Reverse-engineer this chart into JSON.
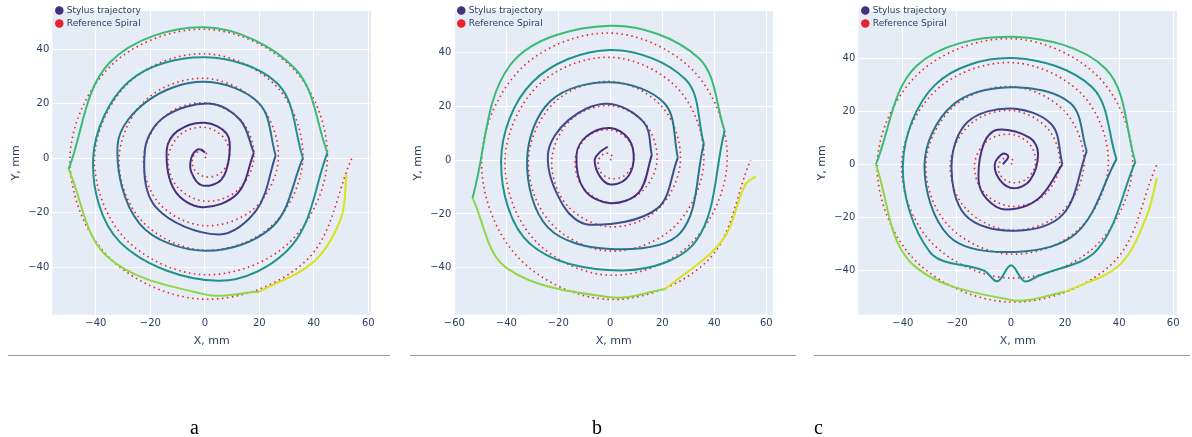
{
  "chart_data": [
    {
      "type": "line",
      "xlabel": "X, mm",
      "ylabel": "Y, mm",
      "xlim": [
        -56,
        61
      ],
      "ylim": [
        -57.5,
        54
      ],
      "xticks": [
        -40,
        -20,
        0,
        20,
        40,
        60
      ],
      "yticks": [
        -40,
        -20,
        0,
        20,
        40
      ],
      "grid": true,
      "legend": "top left",
      "annotations": [
        "a"
      ],
      "series": [
        {
          "name": "Stylus trajectory",
          "type": "line",
          "color": "#46307e",
          "x": [
            0,
            -1,
            -3,
            -5,
            -5,
            -1,
            6,
            9,
            8,
            0,
            -10,
            -14,
            -11,
            -1,
            12,
            18
          ],
          "values": [
            2,
            3,
            3,
            0,
            -5,
            -10,
            -8,
            1,
            9,
            13,
            10,
            3,
            -12,
            -18,
            -13,
            2
          ]
        },
        {
          "type": "line",
          "color": "#3c4f8a",
          "x": [
            18,
            13,
            2,
            -15,
            -22,
            -18,
            5,
            19,
            26
          ],
          "values": [
            2,
            14,
            20,
            15,
            3,
            -18,
            -28,
            -19,
            1
          ]
        },
        {
          "type": "line",
          "color": "#2c728e",
          "x": [
            26,
            20,
            0,
            -21,
            -32,
            -24,
            0,
            25,
            36
          ],
          "values": [
            1,
            20,
            28,
            21,
            5,
            -24,
            -34,
            -25,
            0
          ]
        },
        {
          "type": "line",
          "color": "#21918c",
          "x": [
            36,
            27,
            0,
            -28,
            -41,
            -31,
            5,
            32,
            45
          ],
          "values": [
            0,
            27,
            37,
            28,
            0,
            -31,
            -45,
            -32,
            2
          ]
        },
        {
          "type": "line",
          "color": "#3bbb75",
          "x": [
            45,
            33,
            0,
            -35,
            -50
          ],
          "values": [
            2,
            33,
            48,
            35,
            -4
          ]
        },
        {
          "type": "line",
          "color": "#8fd744",
          "x": [
            -50,
            -36,
            0,
            20
          ],
          "values": [
            -4,
            -36,
            -50,
            -49
          ]
        },
        {
          "type": "line",
          "color": "#d8e219",
          "x": [
            20,
            40,
            50,
            52
          ],
          "values": [
            -49,
            -38,
            -22,
            -6
          ]
        },
        {
          "name": "Reference Spiral",
          "type": "line",
          "color": "#e8212b",
          "line_style": "dotted",
          "x": [
            0,
            0.8,
            0,
            -2.4,
            -4.5,
            -4,
            0,
            5.6,
            9,
            7.2,
            0,
            -8.8,
            -13.5,
            -10.3,
            0,
            11.9,
            18,
            13.5,
            0,
            -15.1,
            -22.5,
            -16.7,
            0,
            18.3,
            27,
            19.9,
            0,
            -21.5,
            -31.5,
            -23.1,
            0,
            24.7,
            36,
            26.3,
            0,
            -27.8,
            -40.5,
            -29.4,
            0,
            31,
            45,
            32.6,
            0,
            -34.2,
            -49.5,
            -35.8,
            0,
            37.4,
            54
          ],
          "values": [
            0,
            0.8,
            2.3,
            2.4,
            0,
            -4,
            -6.8,
            -5.6,
            0,
            7.2,
            11.3,
            8.8,
            0,
            -10.3,
            -15.8,
            -11.9,
            0,
            13.5,
            20.3,
            15.1,
            0,
            -16.7,
            -24.8,
            -18.3,
            0,
            19.9,
            29.3,
            21.5,
            0,
            -23.1,
            -33.8,
            -24.7,
            0,
            26.3,
            38.3,
            27.8,
            0,
            -29.4,
            -42.8,
            -31,
            0,
            32.6,
            47.3,
            34.2,
            0,
            -35.8,
            -51.8,
            -37.4,
            0
          ]
        }
      ]
    },
    {
      "type": "line",
      "xlabel": "X, mm",
      "ylabel": "Y, mm",
      "xlim": [
        -60,
        62.6
      ],
      "ylim": [
        -57.5,
        55.5
      ],
      "xticks": [
        -60,
        -40,
        -20,
        0,
        20,
        40,
        60
      ],
      "yticks": [
        -40,
        -20,
        0,
        20,
        40
      ],
      "grid": true,
      "legend": "top left",
      "annotations": [
        "b"
      ],
      "series": [
        {
          "name": "Stylus trajectory",
          "type": "line",
          "color": "#46307e",
          "x": [
            -1,
            -4,
            -6,
            -4,
            0,
            6,
            9,
            7,
            0,
            -9,
            -13,
            -10,
            0,
            11,
            16
          ],
          "values": [
            5,
            3,
            0,
            -6,
            -9,
            -7,
            0,
            8,
            12,
            9,
            2,
            -11,
            -16,
            -12,
            2
          ]
        },
        {
          "type": "line",
          "color": "#3c4f8a",
          "x": [
            16,
            13,
            -1,
            -16,
            -24,
            -18,
            -8,
            18,
            26
          ],
          "values": [
            2,
            14,
            21,
            15,
            2,
            -17,
            -24,
            -18,
            1
          ]
        },
        {
          "type": "line",
          "color": "#2c728e",
          "x": [
            26,
            21,
            0,
            -23,
            -32,
            -24,
            0,
            27,
            36
          ],
          "values": [
            1,
            21,
            29,
            22,
            0,
            -25,
            -33,
            -27,
            6
          ]
        },
        {
          "type": "line",
          "color": "#21918c",
          "x": [
            36,
            29,
            0,
            -30,
            -42,
            -31,
            5,
            33,
            44
          ],
          "values": [
            6,
            30,
            41,
            29,
            0,
            -31,
            -41,
            -30,
            11
          ]
        },
        {
          "type": "line",
          "color": "#3bbb75",
          "x": [
            44,
            34,
            0,
            -38,
            -53
          ],
          "values": [
            11,
            38,
            50,
            36,
            -14
          ]
        },
        {
          "type": "line",
          "color": "#8fd744",
          "x": [
            -53,
            -40,
            0,
            21
          ],
          "values": [
            -14,
            -40,
            -51,
            -48
          ]
        },
        {
          "type": "line",
          "color": "#d8e219",
          "x": [
            21,
            43,
            52,
            56
          ],
          "values": [
            -48,
            -30,
            -9,
            -6
          ]
        },
        {
          "name": "Reference Spiral",
          "type": "line",
          "color": "#e8212b",
          "line_style": "dotted",
          "x": [
            0,
            0.8,
            0,
            -2.4,
            -4.5,
            -4,
            0,
            5.6,
            9,
            7.2,
            0,
            -8.8,
            -13.5,
            -10.3,
            0,
            11.9,
            18,
            13.5,
            0,
            -15.1,
            -22.5,
            -16.7,
            0,
            18.3,
            27,
            19.9,
            0,
            -21.5,
            -31.5,
            -23.1,
            0,
            24.7,
            36,
            26.3,
            0,
            -27.8,
            -40.5,
            -29.4,
            0,
            31,
            45,
            32.6,
            0,
            -34.2,
            -49.5,
            -35.8,
            0,
            37.4,
            54
          ],
          "values": [
            0,
            0.8,
            2.3,
            2.4,
            0,
            -4,
            -6.8,
            -5.6,
            0,
            7.2,
            11.3,
            8.8,
            0,
            -10.3,
            -15.8,
            -11.9,
            0,
            13.5,
            20.3,
            15.1,
            0,
            -16.7,
            -24.8,
            -18.3,
            0,
            19.9,
            29.3,
            21.5,
            0,
            -23.1,
            -33.8,
            -24.7,
            0,
            26.3,
            38.3,
            27.8,
            0,
            -29.4,
            -42.8,
            -31,
            0,
            32.6,
            47.3,
            34.2,
            0,
            -35.8,
            -51.8,
            -37.4,
            0
          ]
        }
      ]
    },
    {
      "type": "line",
      "xlabel": "X, mm",
      "ylabel": "Y, mm",
      "xlim": [
        -56.5,
        61.4
      ],
      "ylim": [
        -56.6,
        57.7
      ],
      "xticks": [
        -40,
        -20,
        0,
        20,
        40,
        60
      ],
      "yticks": [
        -40,
        -20,
        0,
        20,
        40
      ],
      "grid": true,
      "legend": "top left",
      "annotations": [
        "c"
      ],
      "series": [
        {
          "name": "Stylus trajectory",
          "type": "line",
          "color": "#46307e",
          "x": [
            -3,
            -1,
            -3,
            -6,
            -4,
            1,
            7,
            10,
            7,
            -5,
            -10,
            -12,
            -9,
            -2,
            10,
            19
          ],
          "values": [
            0,
            3,
            4,
            0,
            -6,
            -9,
            -6,
            4,
            10,
            13,
            8,
            -6,
            -13,
            -17,
            -13,
            0
          ]
        },
        {
          "type": "line",
          "color": "#3c4f8a",
          "x": [
            19,
            15,
            0,
            -16,
            -22,
            -17,
            0,
            19,
            28
          ],
          "values": [
            0,
            15,
            21,
            16,
            0,
            -19,
            -25,
            -19,
            5
          ]
        },
        {
          "type": "line",
          "color": "#2c728e",
          "x": [
            28,
            22,
            0,
            -22,
            -32,
            -23,
            0,
            24,
            39
          ],
          "values": [
            5,
            23,
            29,
            22,
            0,
            -27,
            -33,
            -26,
            2
          ]
        },
        {
          "type": "line",
          "color": "#21918c",
          "x": [
            39,
            30,
            0,
            -28,
            -40,
            -30,
            -10,
            -5,
            0,
            5,
            10,
            32,
            46
          ],
          "values": [
            2,
            29,
            40,
            30,
            0,
            -33,
            -40,
            -44,
            -38,
            -44,
            -42,
            -32,
            1
          ]
        },
        {
          "type": "line",
          "color": "#3bbb75",
          "x": [
            46,
            35,
            0,
            -35,
            -50
          ],
          "values": [
            1,
            36,
            48,
            37,
            0
          ]
        },
        {
          "type": "line",
          "color": "#8fd744",
          "x": [
            -50,
            -37,
            0,
            20
          ],
          "values": [
            0,
            -37,
            -51,
            -48
          ]
        },
        {
          "type": "line",
          "color": "#d8e219",
          "x": [
            20,
            40,
            50,
            54
          ],
          "values": [
            -48,
            -38,
            -20,
            -5
          ]
        },
        {
          "name": "Reference Spiral",
          "type": "line",
          "color": "#e8212b",
          "line_style": "dotted",
          "x": [
            0,
            0.8,
            0,
            -2.4,
            -4.5,
            -4,
            0,
            5.6,
            9,
            7.2,
            0,
            -8.8,
            -13.5,
            -10.3,
            0,
            11.9,
            18,
            13.5,
            0,
            -15.1,
            -22.5,
            -16.7,
            0,
            18.3,
            27,
            19.9,
            0,
            -21.5,
            -31.5,
            -23.1,
            0,
            24.7,
            36,
            26.3,
            0,
            -27.8,
            -40.5,
            -29.4,
            0,
            31,
            45,
            32.6,
            0,
            -34.2,
            -49.5,
            -35.8,
            0,
            37.4,
            54
          ],
          "values": [
            0,
            0.8,
            2.3,
            2.4,
            0,
            -4,
            -6.8,
            -5.6,
            0,
            7.2,
            11.3,
            8.8,
            0,
            -10.3,
            -15.8,
            -11.9,
            0,
            13.5,
            20.3,
            15.1,
            0,
            -16.7,
            -24.8,
            -18.3,
            0,
            19.9,
            29.3,
            21.5,
            0,
            -23.1,
            -33.8,
            -24.7,
            0,
            26.3,
            38.3,
            27.8,
            0,
            -29.4,
            -42.8,
            -31,
            0,
            32.6,
            47.3,
            34.2,
            0,
            -35.8,
            -51.8,
            -37.4,
            0
          ]
        }
      ]
    }
  ]
}
